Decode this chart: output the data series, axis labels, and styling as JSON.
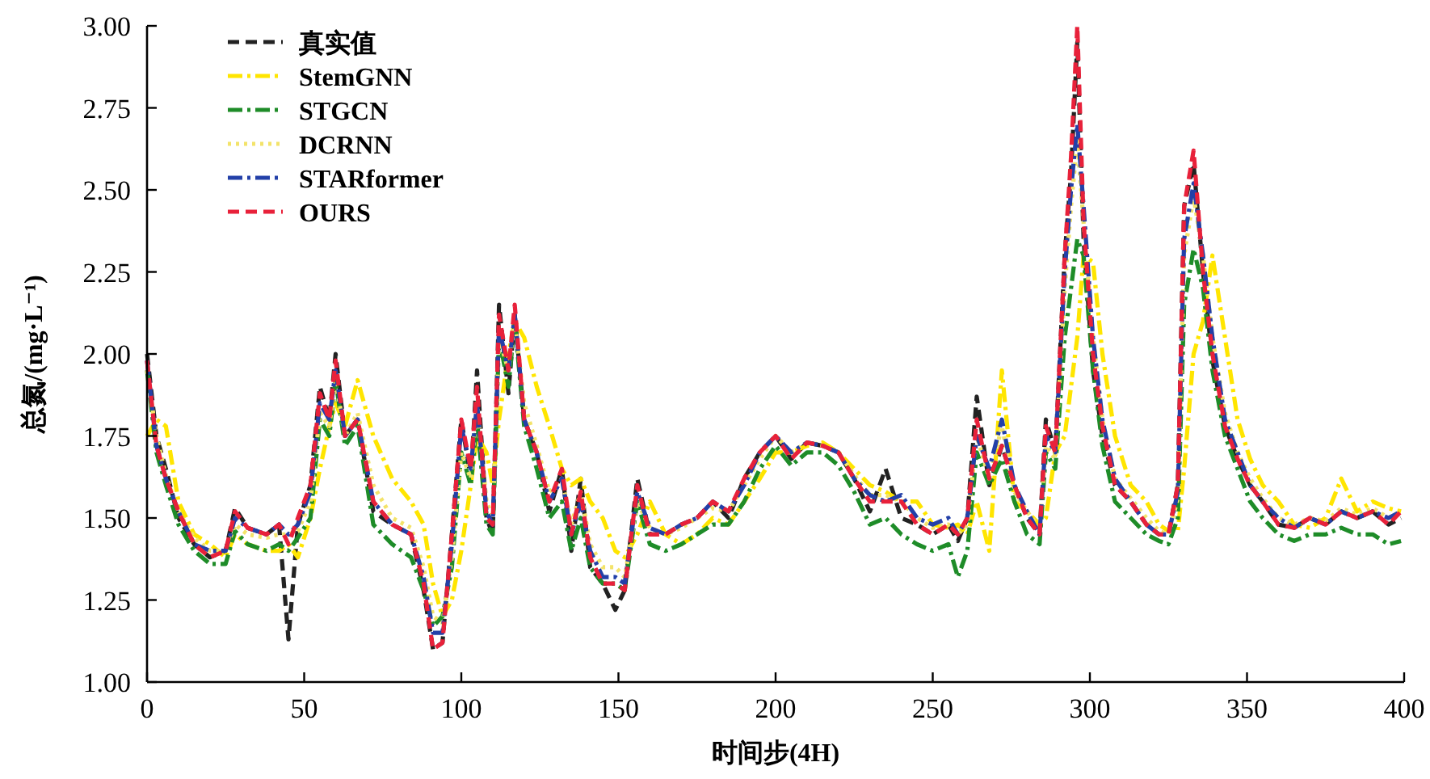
{
  "chart_data": {
    "type": "line",
    "xlabel": "时间步(4H)",
    "ylabel": "总氮/(mg·L⁻¹)",
    "xlim": [
      0,
      400
    ],
    "xticks": [
      0,
      50,
      100,
      150,
      200,
      250,
      300,
      350,
      400
    ],
    "ylim": [
      1,
      3
    ],
    "yticks": [
      {
        "value": 1,
        "label": "1.00"
      },
      {
        "value": 1.25,
        "label": "1.25"
      },
      {
        "value": 1.5,
        "label": "1.50"
      },
      {
        "value": 1.75,
        "label": "1.75"
      },
      {
        "value": 2,
        "label": "2.00"
      },
      {
        "value": 2.25,
        "label": "2.25"
      },
      {
        "value": 2.5,
        "label": "2.50"
      },
      {
        "value": 2.75,
        "label": "2.75"
      },
      {
        "value": 3,
        "label": "3.00"
      }
    ],
    "legend": "top left",
    "x": [
      0,
      3,
      6,
      10,
      15,
      20,
      25,
      28,
      32,
      38,
      42,
      45,
      48,
      52,
      55,
      58,
      60,
      63,
      67,
      72,
      78,
      84,
      88,
      91,
      94,
      97,
      100,
      103,
      105,
      108,
      110,
      112,
      115,
      117,
      120,
      124,
      128,
      132,
      135,
      138,
      141,
      145,
      149,
      152,
      156,
      160,
      165,
      170,
      175,
      180,
      185,
      190,
      195,
      200,
      205,
      210,
      215,
      220,
      225,
      230,
      235,
      240,
      245,
      250,
      255,
      258,
      261,
      264,
      268,
      272,
      276,
      280,
      284,
      286,
      289,
      292,
      294,
      296,
      298,
      301,
      304,
      308,
      313,
      318,
      322,
      325,
      328,
      330,
      333,
      336,
      339,
      343,
      347,
      351,
      355,
      360,
      365,
      370,
      375,
      380,
      385,
      390,
      395,
      399
    ],
    "series": [
      {
        "name": "真实值",
        "color": "#222222",
        "line_style": "dashed",
        "values": [
          2.0,
          1.75,
          1.65,
          1.5,
          1.42,
          1.38,
          1.4,
          1.53,
          1.47,
          1.45,
          1.48,
          1.13,
          1.48,
          1.6,
          1.9,
          1.8,
          2.0,
          1.75,
          1.8,
          1.52,
          1.48,
          1.45,
          1.28,
          1.1,
          1.12,
          1.45,
          1.8,
          1.62,
          1.95,
          1.5,
          1.45,
          2.15,
          1.88,
          2.12,
          1.8,
          1.7,
          1.52,
          1.65,
          1.4,
          1.62,
          1.35,
          1.3,
          1.22,
          1.28,
          1.62,
          1.45,
          1.45,
          1.48,
          1.5,
          1.55,
          1.5,
          1.62,
          1.7,
          1.75,
          1.68,
          1.73,
          1.72,
          1.7,
          1.62,
          1.52,
          1.65,
          1.5,
          1.48,
          1.45,
          1.48,
          1.43,
          1.5,
          1.87,
          1.6,
          1.72,
          1.6,
          1.5,
          1.45,
          1.8,
          1.7,
          2.3,
          2.55,
          2.95,
          2.35,
          1.95,
          1.75,
          1.6,
          1.55,
          1.48,
          1.45,
          1.45,
          1.6,
          2.45,
          2.58,
          2.25,
          1.98,
          1.78,
          1.68,
          1.6,
          1.55,
          1.48,
          1.47,
          1.5,
          1.48,
          1.52,
          1.5,
          1.52,
          1.48,
          1.5
        ]
      },
      {
        "name": "StemGNN",
        "color": "#ffe500",
        "line_style": "dashdot",
        "values": [
          1.75,
          1.8,
          1.78,
          1.55,
          1.45,
          1.42,
          1.38,
          1.45,
          1.42,
          1.4,
          1.4,
          1.42,
          1.38,
          1.5,
          1.65,
          1.78,
          1.85,
          1.78,
          1.92,
          1.75,
          1.62,
          1.55,
          1.48,
          1.3,
          1.2,
          1.25,
          1.4,
          1.6,
          1.75,
          1.7,
          1.6,
          1.8,
          2.0,
          2.1,
          2.05,
          1.9,
          1.78,
          1.65,
          1.6,
          1.62,
          1.55,
          1.5,
          1.4,
          1.38,
          1.45,
          1.55,
          1.45,
          1.42,
          1.45,
          1.5,
          1.48,
          1.55,
          1.62,
          1.7,
          1.7,
          1.72,
          1.73,
          1.7,
          1.65,
          1.6,
          1.58,
          1.55,
          1.55,
          1.48,
          1.47,
          1.48,
          1.45,
          1.55,
          1.4,
          1.95,
          1.55,
          1.52,
          1.48,
          1.5,
          1.7,
          1.75,
          1.9,
          2.05,
          2.3,
          2.28,
          2.0,
          1.75,
          1.6,
          1.55,
          1.48,
          1.46,
          1.46,
          1.65,
          2.0,
          2.1,
          2.3,
          2.05,
          1.8,
          1.68,
          1.6,
          1.55,
          1.48,
          1.47,
          1.5,
          1.62,
          1.52,
          1.55,
          1.53,
          1.52
        ]
      },
      {
        "name": "STGCN",
        "color": "#1e8c28",
        "line_style": "dashdot",
        "values": [
          1.95,
          1.7,
          1.6,
          1.48,
          1.4,
          1.36,
          1.36,
          1.46,
          1.42,
          1.4,
          1.42,
          1.4,
          1.44,
          1.5,
          1.8,
          1.75,
          1.92,
          1.72,
          1.78,
          1.48,
          1.42,
          1.38,
          1.28,
          1.17,
          1.2,
          1.35,
          1.7,
          1.6,
          1.8,
          1.48,
          1.45,
          2.05,
          1.9,
          2.1,
          1.78,
          1.65,
          1.5,
          1.55,
          1.4,
          1.5,
          1.35,
          1.3,
          1.3,
          1.28,
          1.55,
          1.42,
          1.4,
          1.42,
          1.45,
          1.48,
          1.48,
          1.55,
          1.65,
          1.72,
          1.66,
          1.7,
          1.7,
          1.66,
          1.58,
          1.48,
          1.5,
          1.45,
          1.42,
          1.4,
          1.42,
          1.32,
          1.4,
          1.7,
          1.6,
          1.68,
          1.55,
          1.45,
          1.42,
          1.7,
          1.65,
          2.05,
          2.2,
          2.35,
          2.3,
          1.95,
          1.72,
          1.55,
          1.5,
          1.45,
          1.43,
          1.42,
          1.5,
          2.15,
          2.32,
          2.2,
          1.95,
          1.75,
          1.65,
          1.55,
          1.5,
          1.45,
          1.43,
          1.45,
          1.45,
          1.47,
          1.45,
          1.45,
          1.42,
          1.43
        ]
      },
      {
        "name": "DCRNN",
        "color": "#f3e36a",
        "line_style": "dotted",
        "values": [
          1.95,
          1.75,
          1.63,
          1.52,
          1.44,
          1.4,
          1.4,
          1.48,
          1.45,
          1.44,
          1.45,
          1.45,
          1.46,
          1.55,
          1.82,
          1.78,
          1.92,
          1.75,
          1.82,
          1.6,
          1.5,
          1.47,
          1.35,
          1.2,
          1.18,
          1.38,
          1.7,
          1.62,
          1.85,
          1.55,
          1.5,
          2.05,
          1.95,
          2.1,
          1.85,
          1.72,
          1.58,
          1.62,
          1.48,
          1.58,
          1.42,
          1.35,
          1.35,
          1.32,
          1.55,
          1.47,
          1.45,
          1.47,
          1.5,
          1.53,
          1.52,
          1.6,
          1.68,
          1.75,
          1.7,
          1.73,
          1.72,
          1.7,
          1.63,
          1.57,
          1.57,
          1.55,
          1.5,
          1.47,
          1.48,
          1.45,
          1.48,
          1.75,
          1.62,
          1.78,
          1.58,
          1.52,
          1.47,
          1.72,
          1.68,
          2.2,
          2.45,
          2.65,
          2.4,
          2.05,
          1.8,
          1.62,
          1.56,
          1.5,
          1.46,
          1.45,
          1.56,
          2.3,
          2.48,
          2.3,
          2.05,
          1.82,
          1.7,
          1.62,
          1.56,
          1.5,
          1.48,
          1.5,
          1.49,
          1.53,
          1.51,
          1.53,
          1.5,
          1.52
        ]
      },
      {
        "name": "STARformer",
        "color": "#2340a8",
        "line_style": "dashdot",
        "values": [
          1.98,
          1.72,
          1.62,
          1.52,
          1.42,
          1.4,
          1.4,
          1.5,
          1.47,
          1.45,
          1.48,
          1.45,
          1.48,
          1.58,
          1.85,
          1.8,
          1.95,
          1.75,
          1.8,
          1.55,
          1.48,
          1.45,
          1.32,
          1.15,
          1.15,
          1.42,
          1.78,
          1.65,
          1.85,
          1.52,
          1.48,
          2.08,
          1.95,
          2.12,
          1.8,
          1.7,
          1.55,
          1.62,
          1.45,
          1.55,
          1.4,
          1.32,
          1.32,
          1.3,
          1.58,
          1.47,
          1.45,
          1.48,
          1.5,
          1.55,
          1.52,
          1.6,
          1.7,
          1.75,
          1.7,
          1.73,
          1.72,
          1.7,
          1.62,
          1.57,
          1.55,
          1.57,
          1.5,
          1.48,
          1.5,
          1.45,
          1.5,
          1.75,
          1.65,
          1.8,
          1.6,
          1.52,
          1.45,
          1.75,
          1.7,
          2.25,
          2.5,
          2.7,
          2.45,
          2.05,
          1.8,
          1.62,
          1.55,
          1.48,
          1.45,
          1.45,
          1.58,
          2.35,
          2.52,
          2.3,
          2.05,
          1.8,
          1.7,
          1.6,
          1.55,
          1.5,
          1.47,
          1.5,
          1.48,
          1.52,
          1.5,
          1.52,
          1.5,
          1.52
        ]
      },
      {
        "name": "OURS",
        "color": "#e8213a",
        "line_style": "dashed",
        "values": [
          1.98,
          1.72,
          1.62,
          1.52,
          1.42,
          1.38,
          1.4,
          1.52,
          1.47,
          1.45,
          1.48,
          1.42,
          1.5,
          1.6,
          1.88,
          1.8,
          1.98,
          1.75,
          1.8,
          1.55,
          1.48,
          1.45,
          1.3,
          1.1,
          1.12,
          1.45,
          1.8,
          1.65,
          1.9,
          1.5,
          1.48,
          2.12,
          1.95,
          2.15,
          1.8,
          1.7,
          1.55,
          1.65,
          1.45,
          1.58,
          1.38,
          1.3,
          1.3,
          1.28,
          1.6,
          1.45,
          1.45,
          1.48,
          1.5,
          1.55,
          1.52,
          1.62,
          1.7,
          1.75,
          1.68,
          1.73,
          1.72,
          1.7,
          1.62,
          1.55,
          1.55,
          1.55,
          1.48,
          1.45,
          1.48,
          1.45,
          1.5,
          1.8,
          1.62,
          1.72,
          1.6,
          1.5,
          1.45,
          1.78,
          1.7,
          2.3,
          2.6,
          3.0,
          2.4,
          2.0,
          1.78,
          1.6,
          1.55,
          1.48,
          1.45,
          1.45,
          1.6,
          2.45,
          2.62,
          2.25,
          2.0,
          1.78,
          1.68,
          1.6,
          1.55,
          1.48,
          1.47,
          1.5,
          1.48,
          1.52,
          1.5,
          1.52,
          1.48,
          1.52
        ]
      }
    ]
  }
}
